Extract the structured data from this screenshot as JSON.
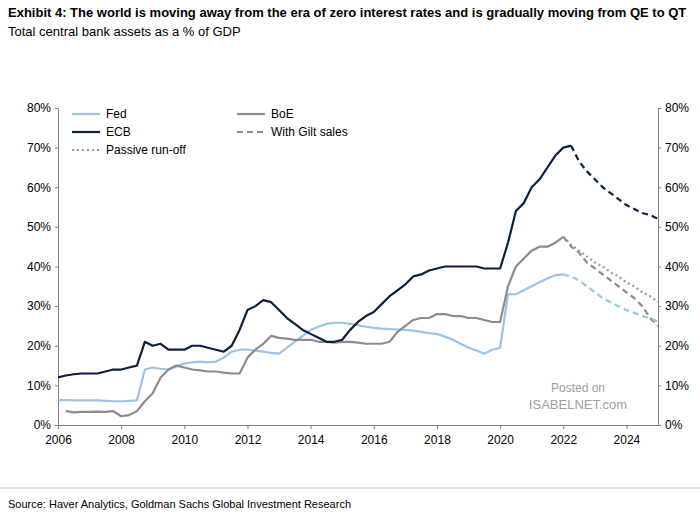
{
  "chart_data": {
    "type": "line",
    "title": "Exhibit 4: The world is moving away from the era of zero interest rates and is gradually moving from QE to QT",
    "subtitle": "Total central bank assets as a % of GDP",
    "source": "Source: Haver Analytics, Goldman Sachs Global Investment Research",
    "annotations": [
      "Posted on",
      "ISABELNET.com"
    ],
    "legend": "upper left",
    "grid": false,
    "xlim": [
      2006,
      2025
    ],
    "xticks": [
      2006,
      2008,
      2010,
      2012,
      2014,
      2016,
      2018,
      2020,
      2022,
      2024
    ],
    "ylim": [
      0,
      80
    ],
    "yticks": [
      {
        "value": 0,
        "label": "0%"
      },
      {
        "value": 10,
        "label": "10%"
      },
      {
        "value": 20,
        "label": "20%"
      },
      {
        "value": 30,
        "label": "30%"
      },
      {
        "value": 40,
        "label": "40%"
      },
      {
        "value": 50,
        "label": "50%"
      },
      {
        "value": 60,
        "label": "60%"
      },
      {
        "value": 70,
        "label": "70%"
      },
      {
        "value": 80,
        "label": "80%"
      }
    ],
    "y2lim": [
      0,
      80
    ],
    "y2ticks": [
      {
        "value": 0,
        "label": "0%"
      },
      {
        "value": 10,
        "label": "10%"
      },
      {
        "value": 20,
        "label": "20%"
      },
      {
        "value": 30,
        "label": "30%"
      },
      {
        "value": 40,
        "label": "40%"
      },
      {
        "value": 50,
        "label": "50%"
      },
      {
        "value": 60,
        "label": "60%"
      },
      {
        "value": 70,
        "label": "70%"
      },
      {
        "value": 80,
        "label": "80%"
      }
    ],
    "x": [
      2006,
      2006.25,
      2006.5,
      2006.75,
      2007,
      2007.25,
      2007.5,
      2007.75,
      2008,
      2008.25,
      2008.5,
      2008.75,
      2009,
      2009.25,
      2009.5,
      2009.75,
      2010,
      2010.25,
      2010.5,
      2010.75,
      2011,
      2011.25,
      2011.5,
      2011.75,
      2012,
      2012.25,
      2012.5,
      2012.75,
      2013,
      2013.25,
      2013.5,
      2013.75,
      2014,
      2014.25,
      2014.5,
      2014.75,
      2015,
      2015.25,
      2015.5,
      2015.75,
      2016,
      2016.25,
      2016.5,
      2016.75,
      2017,
      2017.25,
      2017.5,
      2017.75,
      2018,
      2018.25,
      2018.5,
      2018.75,
      2019,
      2019.25,
      2019.5,
      2019.75,
      2020,
      2020.25,
      2020.5,
      2020.75,
      2021,
      2021.25,
      2021.5,
      2021.75,
      2022,
      2022.25,
      2022.5,
      2022.75,
      2023,
      2023.25,
      2023.5,
      2023.75,
      2024,
      2024.25,
      2024.5,
      2024.75,
      2025
    ],
    "series": [
      {
        "name": "Fed",
        "color": "#9cc3e5",
        "line_style": "solid",
        "values": [
          6.3,
          6.3,
          6.2,
          6.2,
          6.2,
          6.2,
          6.1,
          6.0,
          6.0,
          6.1,
          6.2,
          14.0,
          14.5,
          14.2,
          14.0,
          14.8,
          15.5,
          15.8,
          16.0,
          15.8,
          16.0,
          17.0,
          18.5,
          19.0,
          19.0,
          18.8,
          18.5,
          18.2,
          18.0,
          19.5,
          21.0,
          22.5,
          24.0,
          24.8,
          25.5,
          25.8,
          25.8,
          25.5,
          25.2,
          24.8,
          24.5,
          24.3,
          24.2,
          24.1,
          24.0,
          23.8,
          23.5,
          23.2,
          23.0,
          22.3,
          21.5,
          20.5,
          19.5,
          18.8,
          18.0,
          19.0,
          19.5,
          33.0,
          33.0,
          34.0,
          35.0,
          36.0,
          37.0,
          37.8,
          38.0,
          null,
          null,
          null,
          null,
          null,
          null,
          null,
          null,
          null,
          null,
          null,
          null
        ]
      },
      {
        "name": "BoE",
        "color": "#8c8c8c",
        "line_style": "solid",
        "values": [
          null,
          3.5,
          3.2,
          3.3,
          3.3,
          3.4,
          3.3,
          3.5,
          2.2,
          2.5,
          3.5,
          6.0,
          8.0,
          12.0,
          14.0,
          15.0,
          14.5,
          14.0,
          13.8,
          13.5,
          13.5,
          13.2,
          13.0,
          13.0,
          17.0,
          19.0,
          20.5,
          22.5,
          22.0,
          21.8,
          21.5,
          21.5,
          21.5,
          21.0,
          21.0,
          20.8,
          21.0,
          21.0,
          20.8,
          20.5,
          20.5,
          20.5,
          21.0,
          23.5,
          25.0,
          26.5,
          27.0,
          27.0,
          28.0,
          28.0,
          27.5,
          27.5,
          27.0,
          27.0,
          26.5,
          26.0,
          26.0,
          35.0,
          40.0,
          42.0,
          44.0,
          45.0,
          45.0,
          46.0,
          47.5,
          null,
          null,
          null,
          null,
          null,
          null,
          null,
          null,
          null,
          null,
          null,
          null
        ]
      },
      {
        "name": "ECB",
        "color": "#0c1f40",
        "line_style": "solid",
        "values": [
          12.0,
          12.5,
          12.8,
          13.0,
          13.0,
          13.0,
          13.5,
          14.0,
          14.0,
          14.5,
          15.0,
          21.0,
          20.0,
          20.5,
          19.0,
          19.0,
          19.0,
          20.0,
          20.0,
          19.5,
          19.0,
          18.5,
          20.0,
          24.0,
          29.0,
          30.0,
          31.5,
          31.0,
          29.0,
          27.0,
          25.5,
          24.0,
          23.0,
          22.0,
          21.0,
          21.0,
          21.5,
          24.0,
          26.0,
          27.5,
          28.5,
          30.5,
          32.5,
          34.0,
          35.5,
          37.5,
          38.0,
          39.0,
          39.5,
          40.0,
          40.0,
          40.0,
          40.0,
          40.0,
          39.5,
          39.5,
          39.5,
          46.0,
          54.0,
          56.0,
          60.0,
          62.0,
          65.0,
          68.0,
          70.0,
          70.5,
          null,
          null,
          null,
          null,
          null,
          null,
          null,
          null,
          null,
          null,
          null
        ]
      },
      {
        "name": "With Gilt sales",
        "color": "#8c8c8c",
        "line_style": "dashed",
        "values": [
          null,
          null,
          null,
          null,
          null,
          null,
          null,
          null,
          null,
          null,
          null,
          null,
          null,
          null,
          null,
          null,
          null,
          null,
          null,
          null,
          null,
          null,
          null,
          null,
          null,
          null,
          null,
          null,
          null,
          null,
          null,
          null,
          null,
          null,
          null,
          null,
          null,
          null,
          null,
          null,
          null,
          null,
          null,
          null,
          null,
          null,
          null,
          null,
          null,
          null,
          null,
          null,
          null,
          null,
          null,
          null,
          null,
          null,
          null,
          null,
          null,
          null,
          null,
          null,
          47.5,
          45.0,
          43.5,
          41.0,
          39.5,
          38.0,
          36.5,
          35.0,
          33.5,
          32.0,
          30.0,
          27.0,
          25.0
        ]
      },
      {
        "name": "Passive run-off",
        "color": "#9a9a9a",
        "line_style": "dotted",
        "values": [
          null,
          null,
          null,
          null,
          null,
          null,
          null,
          null,
          null,
          null,
          null,
          null,
          null,
          null,
          null,
          null,
          null,
          null,
          null,
          null,
          null,
          null,
          null,
          null,
          null,
          null,
          null,
          null,
          null,
          null,
          null,
          null,
          null,
          null,
          null,
          null,
          null,
          null,
          null,
          null,
          null,
          null,
          null,
          null,
          null,
          null,
          null,
          null,
          null,
          null,
          null,
          null,
          null,
          null,
          null,
          null,
          null,
          null,
          null,
          null,
          null,
          null,
          null,
          null,
          47.5,
          45.5,
          44.0,
          42.5,
          41.0,
          40.0,
          38.5,
          37.5,
          36.0,
          35.0,
          33.5,
          32.5,
          31.0
        ]
      },
      {
        "color": "#9cc3e5",
        "line_style": "dashed",
        "values": [
          null,
          null,
          null,
          null,
          null,
          null,
          null,
          null,
          null,
          null,
          null,
          null,
          null,
          null,
          null,
          null,
          null,
          null,
          null,
          null,
          null,
          null,
          null,
          null,
          null,
          null,
          null,
          null,
          null,
          null,
          null,
          null,
          null,
          null,
          null,
          null,
          null,
          null,
          null,
          null,
          null,
          null,
          null,
          null,
          null,
          null,
          null,
          null,
          null,
          null,
          null,
          null,
          null,
          null,
          null,
          null,
          null,
          null,
          null,
          null,
          null,
          null,
          null,
          null,
          38.0,
          37.5,
          36.5,
          35.0,
          33.5,
          32.0,
          31.0,
          30.0,
          29.0,
          28.3,
          27.5,
          27.0,
          26.0
        ]
      },
      {
        "color": "#0c1f40",
        "line_style": "dashed",
        "values": [
          null,
          null,
          null,
          null,
          null,
          null,
          null,
          null,
          null,
          null,
          null,
          null,
          null,
          null,
          null,
          null,
          null,
          null,
          null,
          null,
          null,
          null,
          null,
          null,
          null,
          null,
          null,
          null,
          null,
          null,
          null,
          null,
          null,
          null,
          null,
          null,
          null,
          null,
          null,
          null,
          null,
          null,
          null,
          null,
          null,
          null,
          null,
          null,
          null,
          null,
          null,
          null,
          null,
          null,
          null,
          null,
          null,
          null,
          null,
          null,
          null,
          null,
          null,
          null,
          null,
          70.5,
          66.5,
          64.0,
          62.0,
          60.0,
          58.5,
          57.0,
          55.5,
          54.5,
          53.5,
          53.0,
          52.0
        ]
      }
    ]
  }
}
